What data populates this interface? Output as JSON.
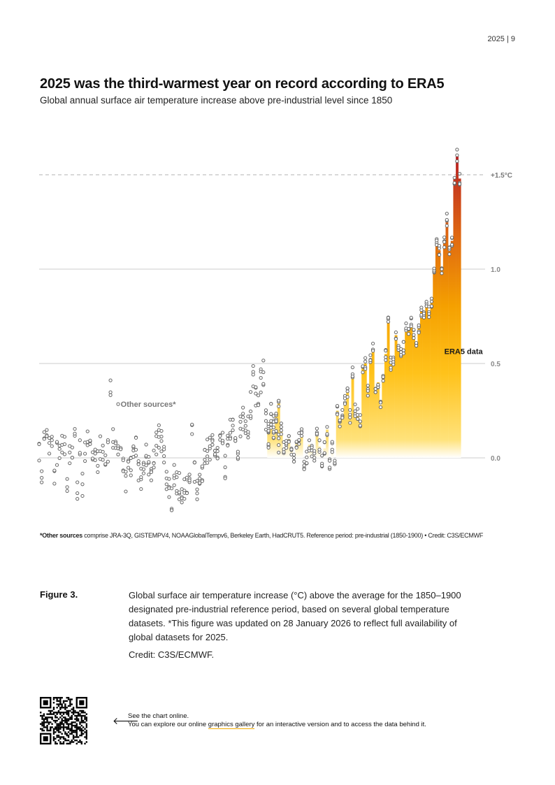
{
  "page_number": "2025  |  9",
  "chart_data": {
    "type": "bar",
    "title": "2025 was the third-warmest year on record according to ERA5",
    "subtitle": "Global annual surface air temperature increase above pre-industrial level since 1850",
    "xlabel": "",
    "ylabel": "",
    "x_range": [
      1850,
      2025
    ],
    "ylim": [
      -0.3,
      1.6
    ],
    "y_ticks": [
      0.0,
      0.5,
      1.0
    ],
    "y_tick_labels": [
      "0.0",
      "0.5",
      "1.0"
    ],
    "threshold": {
      "value": 1.5,
      "label": "+1.5°C",
      "style": "dashed"
    },
    "grid": true,
    "colors": {
      "low": "#ffd23a",
      "mid": "#f5a300",
      "high": "#e06a10",
      "top": "#b22222",
      "marker": "#666666",
      "grid": "#bbbbbb"
    },
    "series": [
      {
        "name": "ERA5 data",
        "start_year": 1940,
        "values": [
          0.15,
          0.2,
          0.12,
          0.22,
          0.3,
          0.15,
          0.05,
          0.08,
          0.1,
          0.05,
          0.0,
          0.08,
          0.1,
          0.12,
          -0.05,
          0.0,
          0.07,
          0.04,
          0.02,
          0.14,
          0.06,
          -0.02,
          0.05,
          0.15,
          -0.04,
          0.05,
          -0.03,
          0.25,
          0.18,
          0.22,
          0.3,
          0.35,
          0.22,
          0.45,
          0.25,
          0.23,
          0.2,
          0.48,
          0.5,
          0.35,
          0.51,
          0.58,
          0.35,
          0.4,
          0.28,
          0.42,
          0.55,
          0.72,
          0.5,
          0.5,
          0.65,
          0.6,
          0.55,
          0.58,
          0.68,
          0.69,
          0.71,
          0.65,
          0.6,
          0.69,
          0.78,
          0.75,
          0.8,
          0.78,
          0.82,
          1.0,
          1.15,
          1.1,
          1.0,
          1.15,
          1.26,
          1.1,
          1.15,
          1.48,
          1.6,
          1.48
        ]
      },
      {
        "name": "Other sources*",
        "start_year": 1850,
        "values": [
          0.02,
          -0.1,
          0.12,
          0.08,
          0.04,
          0.1,
          -0.08,
          0.03,
          0.06,
          0.05,
          0.08,
          -0.12,
          0.02,
          0.04,
          0.1,
          -0.18,
          0.06,
          -0.14,
          0.05,
          0.09,
          0.07,
          0.06,
          0.04,
          -0.01,
          0.06,
          0.03,
          0.02,
          0.05,
          0.38,
          0.1,
          0.06,
          0.04,
          0.02,
          -0.05,
          -0.12,
          -0.08,
          -0.04,
          0.05,
          0.04,
          -0.08,
          -0.12,
          -0.09,
          0.03,
          -0.05,
          -0.12,
          0.01,
          0.08,
          0.12,
          0.09,
          0.02,
          -0.1,
          -0.18,
          -0.22,
          -0.08,
          -0.12,
          -0.15,
          -0.18,
          -0.16,
          -0.12,
          -0.14,
          0.12,
          -0.08,
          -0.18,
          -0.12,
          -0.06,
          -0.02,
          0.03,
          0.05,
          0.06,
          0.02,
          0.04,
          0.1,
          0.14,
          -0.05,
          0.12,
          0.14,
          0.16,
          0.08,
          0.02,
          0.18,
          0.22,
          0.15,
          0.16,
          0.28,
          0.44,
          0.32,
          0.3,
          0.4,
          0.45,
          0.2,
          0.1,
          0.22,
          0.2,
          0.18,
          0.08
        ]
      }
    ],
    "series_labels": {
      "era5": "ERA5 data",
      "other": "Other sources*"
    },
    "footnote_bold": "*Other sources",
    "footnote_text": " comprise JRA-3Q, GISTEMPV4, NOAAGlobalTempv6, Berkeley Earth, HadCRUT5. Reference period: pre-industrial (1850-1900) • Credit: C3S/ECMWF"
  },
  "figure": {
    "label": "Figure 3.",
    "caption": "Global surface air temperature increase (°C) above the average for the 1850–1900 designated pre-industrial reference period, based on several global temperature datasets. *This figure was updated on 28 January 2026 to reflect full availability of global datasets for 2025.",
    "credit": "Credit: C3S/ECMWF."
  },
  "online": {
    "arrow": "🡐",
    "line1": "See the chart online.",
    "line2_before": "You can explore our online ",
    "link_text": "graphics gallery",
    "line2_after": " for an interactive version and to access the data behind it."
  }
}
